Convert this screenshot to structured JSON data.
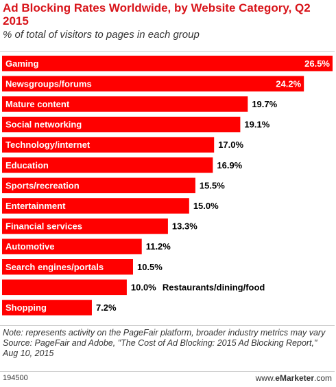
{
  "title": "Ad Blocking Rates Worldwide, by Website Category, Q2 2015",
  "subtitle": "% of total of visitors to pages in each group",
  "notes": {
    "note": "Note: represents activity on the PageFair platform, broader industry metrics may vary",
    "source": "Source: PageFair and Adobe, \"The Cost of Ad Blocking: 2015 Ad Blocking Report,\" Aug 10, 2015"
  },
  "footer": {
    "chart_id": "194500",
    "brand_prefix": "www.",
    "brand_name": "eMarketer",
    "brand_suffix": ".com"
  },
  "colors": {
    "bar": "#ff0000",
    "title": "#d8141a"
  },
  "chart_data": {
    "type": "bar",
    "orientation": "horizontal",
    "categories": [
      "Gaming",
      "Newsgroups/forums",
      "Mature content",
      "Social networking",
      "Technology/internet",
      "Education",
      "Sports/recreation",
      "Entertainment",
      "Financial services",
      "Automotive",
      "Search engines/portals",
      "Restaurants/dining/food",
      "Shopping"
    ],
    "values": [
      26.5,
      24.2,
      19.7,
      19.1,
      17.0,
      16.9,
      15.5,
      15.0,
      13.3,
      11.2,
      10.5,
      10.0,
      7.2
    ],
    "value_labels": [
      "26.5%",
      "24.2%",
      "19.7%",
      "19.1%",
      "17.0%",
      "16.9%",
      "15.5%",
      "15.0%",
      "13.3%",
      "11.2%",
      "10.5%",
      "10.0%",
      "7.2%"
    ],
    "xlim": [
      0,
      26.5
    ],
    "category_label_outside": [
      false,
      false,
      false,
      false,
      false,
      false,
      false,
      false,
      false,
      false,
      false,
      true,
      false
    ]
  }
}
